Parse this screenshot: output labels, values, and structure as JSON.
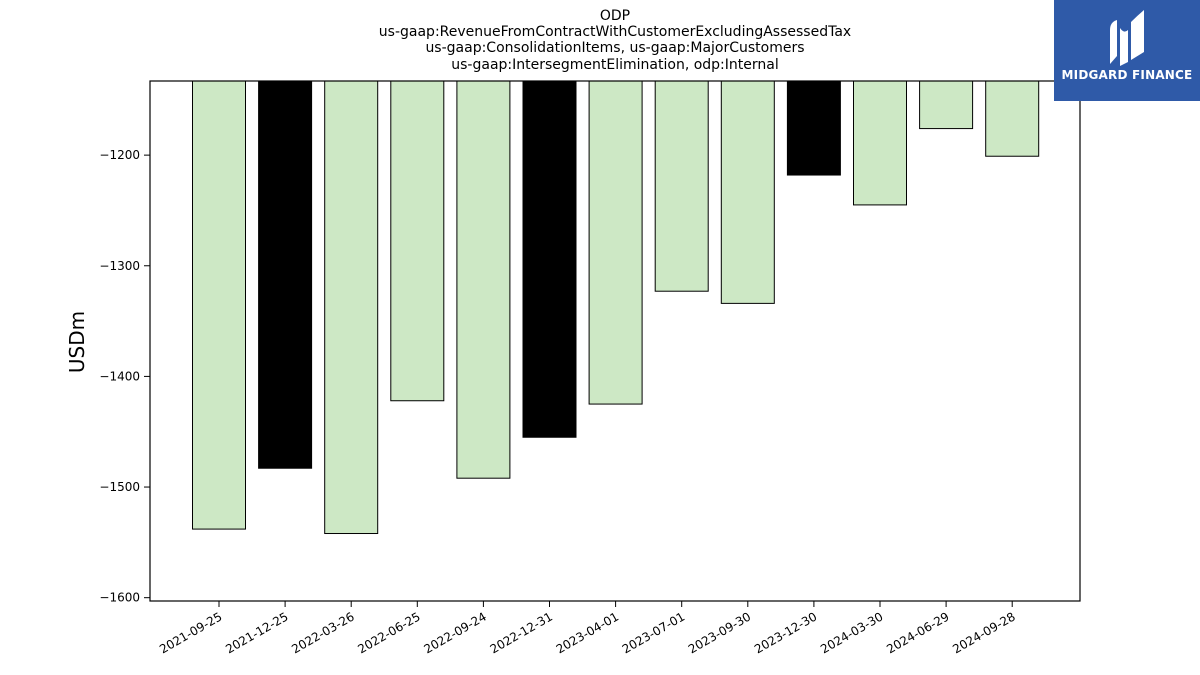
{
  "chart_data": {
    "type": "bar",
    "title_lines": [
      "ODP",
      "us-gaap:RevenueFromContractWithCustomerExcludingAssessedTax",
      "us-gaap:ConsolidationItems, us-gaap:MajorCustomers",
      "us-gaap:IntersegmentElimination, odp:Internal"
    ],
    "ylabel": "USDm",
    "xlabel": "",
    "categories": [
      "2021-09-25",
      "2021-12-25",
      "2022-03-26",
      "2022-06-25",
      "2022-09-24",
      "2022-12-31",
      "2023-04-01",
      "2023-07-01",
      "2023-09-30",
      "2023-12-30",
      "2024-03-30",
      "2024-06-29",
      "2024-09-28"
    ],
    "values": [
      -1538,
      -1483,
      -1542,
      -1422,
      -1492,
      -1455,
      -1425,
      -1323,
      -1334,
      -1218,
      -1245,
      -1176,
      -1201
    ],
    "bar_colors": [
      "#cde8c5",
      "#000000",
      "#cde8c5",
      "#cde8c5",
      "#cde8c5",
      "#000000",
      "#cde8c5",
      "#cde8c5",
      "#cde8c5",
      "#000000",
      "#cde8c5",
      "#cde8c5",
      "#cde8c5"
    ],
    "yticks": [
      -1200,
      -1300,
      -1400,
      -1500,
      -1600
    ],
    "ytick_labels": [
      "−1200",
      "−1300",
      "−1400",
      "−1500",
      "−1600"
    ],
    "ylim": [
      -1603,
      -1133
    ],
    "grid": false
  },
  "logo": {
    "text": "MIDGARD FINANCE",
    "background": "#2f5aa8"
  }
}
